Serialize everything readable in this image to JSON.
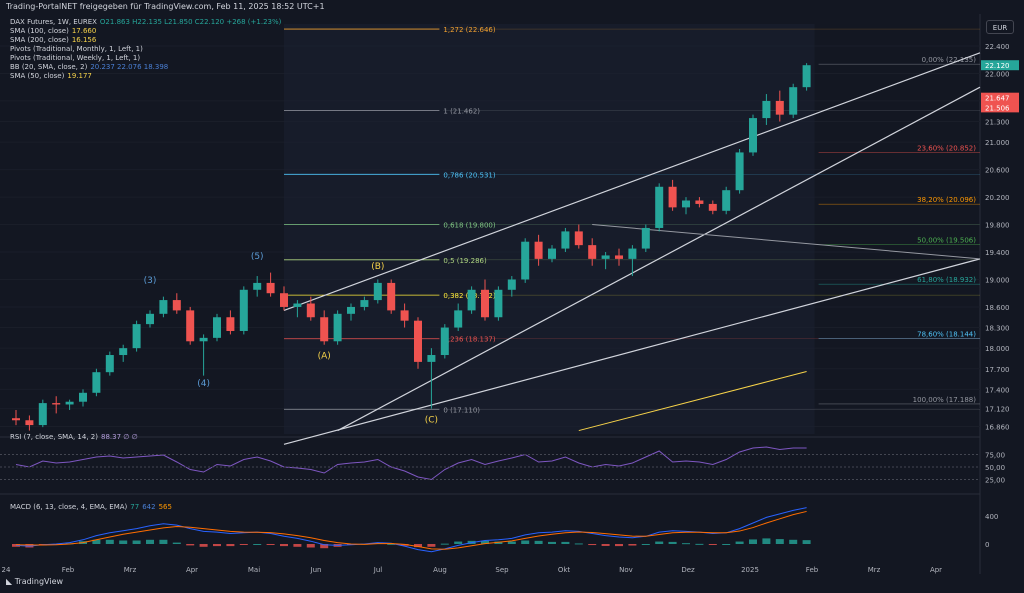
{
  "header": "Trading-PortalNET freigegeben für TradingView.com, Feb 11, 2025 18:52 UTC+1",
  "currency": "EUR",
  "footer_brand": "TradingView",
  "legend": [
    {
      "label": "DAX Futures, 1W, EUREX",
      "value": "O21.863 H22.135 L21.850 C22.120 +268 (+1.23%)",
      "color": "#26a69a"
    },
    {
      "label": "SMA (100, close)",
      "value": "17.660",
      "color": "#f7d34a"
    },
    {
      "label": "SMA (200, close)",
      "value": "16.156",
      "color": "#f7d34a"
    },
    {
      "label": "Pivots (Traditional, Monthly, 1, Left, 1)",
      "value": "",
      "color": "#d1d4dc"
    },
    {
      "label": "Pivots (Traditional, Weekly, 1, Left, 1)",
      "value": "",
      "color": "#d1d4dc"
    },
    {
      "label": "BB (20, SMA, close, 2)",
      "value": "20.237  22.076  18.398",
      "color": "#4a7fd4"
    },
    {
      "label": "SMA (50, close)",
      "value": "19.177",
      "color": "#f7d34a"
    }
  ],
  "rsi_legend": {
    "label": "RSI (7, close, SMA, 14, 2)",
    "value": "88.37  ∅  ∅"
  },
  "macd_legend": {
    "label": "MACD (6, 13, close, 4, EMA, EMA)",
    "v1": "77",
    "v2": "642",
    "v3": "565"
  },
  "colors": {
    "up": "#26a69a",
    "down": "#ef5350",
    "fib": "#d1d4dc",
    "bg": "#131722",
    "grid": "#1e222d"
  },
  "chart_data": {
    "type": "candlestick",
    "x_labels": [
      "24",
      "Feb",
      "Mrz",
      "Apr",
      "Mai",
      "Jun",
      "Jul",
      "Aug",
      "Sep",
      "Okt",
      "Nov",
      "Dez",
      "2025",
      "Feb",
      "Mrz",
      "Apr"
    ],
    "y_ticks": [
      22.4,
      22.0,
      21.6,
      21.3,
      21.0,
      20.6,
      20.2,
      19.8,
      19.4,
      19.0,
      18.6,
      18.3,
      18.0,
      17.7,
      17.4,
      17.12,
      16.86
    ],
    "price_badges": [
      {
        "text": "22.120",
        "color": "#26a69a",
        "y": 22.12
      },
      {
        "text": "21.647",
        "color": "#ef5350",
        "y": 21.647
      },
      {
        "text": "21.506",
        "color": "#ef5350",
        "y": 21.506
      }
    ],
    "ylim": [
      16.75,
      22.72
    ],
    "candles": [
      [
        16.98,
        17.1,
        16.88,
        16.95
      ],
      [
        16.95,
        17.02,
        16.8,
        16.88
      ],
      [
        16.88,
        17.25,
        16.85,
        17.2
      ],
      [
        17.2,
        17.3,
        17.05,
        17.18
      ],
      [
        17.18,
        17.25,
        17.1,
        17.22
      ],
      [
        17.22,
        17.4,
        17.15,
        17.35
      ],
      [
        17.35,
        17.7,
        17.3,
        17.65
      ],
      [
        17.65,
        17.95,
        17.6,
        17.9
      ],
      [
        17.9,
        18.05,
        17.8,
        18.0
      ],
      [
        18.0,
        18.4,
        17.95,
        18.35
      ],
      [
        18.35,
        18.55,
        18.3,
        18.5
      ],
      [
        18.5,
        18.75,
        18.45,
        18.7
      ],
      [
        18.7,
        18.8,
        18.5,
        18.55
      ],
      [
        18.55,
        18.6,
        18.05,
        18.1
      ],
      [
        18.1,
        18.2,
        17.6,
        18.15
      ],
      [
        18.15,
        18.5,
        18.1,
        18.45
      ],
      [
        18.45,
        18.55,
        18.2,
        18.25
      ],
      [
        18.25,
        18.9,
        18.2,
        18.85
      ],
      [
        18.85,
        19.05,
        18.75,
        18.95
      ],
      [
        18.95,
        19.1,
        18.75,
        18.8
      ],
      [
        18.8,
        18.9,
        18.55,
        18.6
      ],
      [
        18.6,
        18.7,
        18.45,
        18.65
      ],
      [
        18.65,
        18.75,
        18.4,
        18.45
      ],
      [
        18.45,
        18.55,
        18.05,
        18.1
      ],
      [
        18.1,
        18.55,
        18.05,
        18.5
      ],
      [
        18.5,
        18.65,
        18.4,
        18.6
      ],
      [
        18.6,
        18.75,
        18.55,
        18.7
      ],
      [
        18.7,
        19.0,
        18.65,
        18.95
      ],
      [
        18.95,
        19.0,
        18.5,
        18.55
      ],
      [
        18.55,
        18.65,
        18.3,
        18.4
      ],
      [
        18.4,
        18.45,
        17.7,
        17.8
      ],
      [
        17.8,
        18.0,
        17.12,
        17.9
      ],
      [
        17.9,
        18.35,
        17.85,
        18.3
      ],
      [
        18.3,
        18.65,
        18.25,
        18.55
      ],
      [
        18.55,
        18.9,
        18.5,
        18.85
      ],
      [
        18.85,
        19.0,
        18.4,
        18.45
      ],
      [
        18.45,
        18.9,
        18.4,
        18.85
      ],
      [
        18.85,
        19.05,
        18.75,
        19.0
      ],
      [
        19.0,
        19.6,
        18.95,
        19.55
      ],
      [
        19.55,
        19.65,
        19.2,
        19.3
      ],
      [
        19.3,
        19.5,
        19.25,
        19.45
      ],
      [
        19.45,
        19.75,
        19.4,
        19.7
      ],
      [
        19.7,
        19.8,
        19.45,
        19.5
      ],
      [
        19.5,
        19.6,
        19.2,
        19.3
      ],
      [
        19.3,
        19.4,
        19.15,
        19.35
      ],
      [
        19.35,
        19.45,
        19.2,
        19.3
      ],
      [
        19.3,
        19.5,
        19.05,
        19.45
      ],
      [
        19.45,
        19.8,
        19.4,
        19.75
      ],
      [
        19.75,
        20.4,
        19.7,
        20.35
      ],
      [
        20.35,
        20.45,
        20.0,
        20.05
      ],
      [
        20.05,
        20.2,
        19.95,
        20.15
      ],
      [
        20.15,
        20.2,
        20.05,
        20.1
      ],
      [
        20.1,
        20.15,
        19.95,
        20.0
      ],
      [
        20.0,
        20.35,
        19.95,
        20.3
      ],
      [
        20.3,
        20.9,
        20.25,
        20.85
      ],
      [
        20.85,
        21.4,
        20.8,
        21.35
      ],
      [
        21.35,
        21.7,
        21.25,
        21.6
      ],
      [
        21.6,
        21.75,
        21.3,
        21.4
      ],
      [
        21.4,
        21.85,
        21.35,
        21.8
      ],
      [
        21.8,
        22.15,
        21.75,
        22.12
      ]
    ],
    "fib_left": [
      {
        "label": "1,272 (22.646)",
        "value": 22.646,
        "color": "#f0a030"
      },
      {
        "label": "1 (21.462)",
        "value": 21.462,
        "color": "#9598a1"
      },
      {
        "label": "0,786 (20.531)",
        "value": 20.531,
        "color": "#4fc3f7"
      },
      {
        "label": "0,618 (19.800)",
        "value": 19.8,
        "color": "#81c784"
      },
      {
        "label": "0,5 (19.286)",
        "value": 19.286,
        "color": "#aed581"
      },
      {
        "label": "0,382 (18.772)",
        "value": 18.772,
        "color": "#ffeb3b"
      },
      {
        "label": "0,236 (18.137)",
        "value": 18.137,
        "color": "#ef5350"
      },
      {
        "label": "0 (17.110)",
        "value": 17.11,
        "color": "#9598a1"
      }
    ],
    "fib_right": [
      {
        "label": "0,00% (22.135)",
        "value": 22.135,
        "color": "#9598a1"
      },
      {
        "label": "23,60% (20.852)",
        "value": 20.852,
        "color": "#ef5350"
      },
      {
        "label": "38,20% (20.096)",
        "value": 20.096,
        "color": "#ff9800"
      },
      {
        "label": "50,00% (19.506)",
        "value": 19.506,
        "color": "#4caf50"
      },
      {
        "label": "61,80% (18.932)",
        "value": 18.932,
        "color": "#26a69a"
      },
      {
        "label": "78,60% (18.144)",
        "value": 18.144,
        "color": "#4fc3f7"
      },
      {
        "label": "100,00% (17.188)",
        "value": 17.188,
        "color": "#9598a1"
      }
    ],
    "waves": [
      {
        "label": "(3)",
        "i": 10,
        "y": 18.95,
        "color": "#5b9bd5"
      },
      {
        "label": "(4)",
        "i": 14,
        "y": 17.45,
        "color": "#5b9bd5"
      },
      {
        "label": "(5)",
        "i": 18,
        "y": 19.3,
        "color": "#5b9bd5"
      },
      {
        "label": "(A)",
        "i": 23,
        "y": 17.85,
        "color": "#f7d34a"
      },
      {
        "label": "(B)",
        "i": 27,
        "y": 19.15,
        "color": "#f7d34a"
      },
      {
        "label": "(C)",
        "i": 31,
        "y": 16.92,
        "color": "#f7d34a"
      }
    ],
    "rsi": {
      "levels": [
        "75,00",
        "50,00",
        "25,00"
      ],
      "values": [
        55,
        50,
        62,
        58,
        60,
        65,
        70,
        72,
        68,
        70,
        72,
        74,
        60,
        45,
        40,
        55,
        52,
        65,
        70,
        62,
        50,
        48,
        45,
        38,
        55,
        58,
        60,
        65,
        50,
        42,
        30,
        25,
        45,
        58,
        65,
        55,
        62,
        68,
        75,
        60,
        62,
        70,
        58,
        50,
        55,
        52,
        58,
        70,
        82,
        60,
        62,
        60,
        55,
        65,
        80,
        88,
        90,
        85,
        88,
        88
      ]
    },
    "macd": {
      "levels": [
        "400",
        "0"
      ],
      "macd": [
        -20,
        -30,
        -10,
        0,
        20,
        60,
        120,
        160,
        190,
        220,
        260,
        290,
        270,
        220,
        180,
        170,
        150,
        160,
        170,
        150,
        110,
        80,
        40,
        -10,
        -20,
        -10,
        0,
        20,
        10,
        -30,
        -80,
        -110,
        -70,
        -20,
        20,
        50,
        60,
        80,
        130,
        160,
        170,
        190,
        180,
        150,
        120,
        100,
        90,
        110,
        170,
        190,
        180,
        170,
        150,
        160,
        220,
        300,
        380,
        430,
        480,
        520
      ],
      "signal": [
        -10,
        -15,
        -15,
        -10,
        0,
        20,
        60,
        100,
        140,
        170,
        200,
        230,
        250,
        240,
        220,
        200,
        180,
        170,
        168,
        162,
        145,
        120,
        90,
        50,
        20,
        0,
        -5,
        5,
        8,
        -5,
        -35,
        -70,
        -75,
        -55,
        -25,
        5,
        25,
        45,
        80,
        115,
        140,
        160,
        172,
        165,
        148,
        130,
        112,
        110,
        135,
        160,
        168,
        168,
        160,
        160,
        185,
        235,
        300,
        360,
        420,
        465
      ],
      "hist": [
        -40,
        -50,
        -20,
        -10,
        10,
        40,
        60,
        60,
        50,
        50,
        60,
        60,
        20,
        -20,
        -40,
        -30,
        -30,
        -10,
        0,
        -10,
        -30,
        -40,
        -50,
        -60,
        -40,
        -10,
        5,
        15,
        2,
        -25,
        -45,
        -40,
        5,
        35,
        45,
        45,
        35,
        35,
        50,
        45,
        30,
        30,
        8,
        -15,
        -28,
        -30,
        -22,
        0,
        35,
        30,
        12,
        2,
        -10,
        0,
        35,
        65,
        80,
        70,
        60,
        55
      ]
    }
  }
}
